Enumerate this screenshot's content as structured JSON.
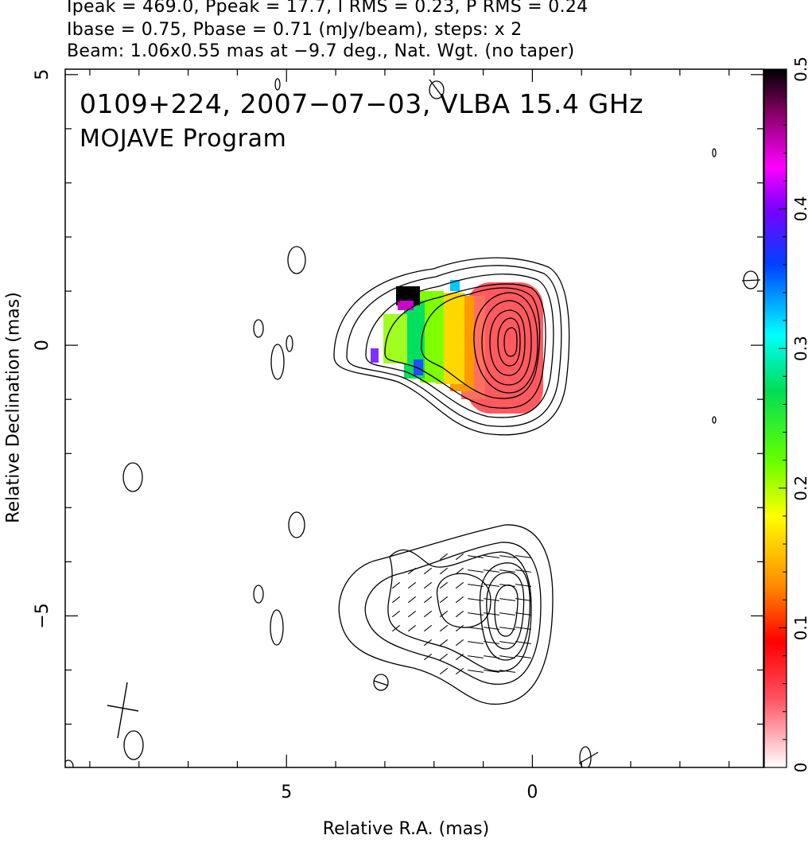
{
  "header": {
    "line1": "Ipeak = 469.0, Ppeak = 17.7, I RMS = 0.23, P RMS = 0.24",
    "line2": "Ibase = 0.75, Pbase = 0.71 (mJy/beam), steps: x 2",
    "line3": "Beam: 1.06x0.55 mas at −9.7 deg., Nat. Wgt. (no taper)"
  },
  "plot_title": {
    "line1": "0109+224, 2007−07−03, VLBA 15.4 GHz",
    "line2": "MOJAVE Program"
  },
  "chart_data": {
    "type": "contour",
    "xlabel": "Relative R.A. (mas)",
    "ylabel": "Relative Declination (mas)",
    "xlim": [
      9.5,
      -4.7
    ],
    "ylim": [
      -7.8,
      5.1
    ],
    "x_ticks": [
      {
        "value": 5,
        "label": "5"
      },
      {
        "value": 0,
        "label": "0"
      }
    ],
    "y_ticks": [
      {
        "value": 5,
        "label": "5"
      },
      {
        "value": 0,
        "label": "0"
      },
      {
        "value": -5,
        "label": "−5"
      }
    ],
    "colorbar": {
      "range": [
        0,
        0.5
      ],
      "ticks": [
        {
          "value": 0,
          "label": "0"
        },
        {
          "value": 0.1,
          "label": "0.1"
        },
        {
          "value": 0.2,
          "label": "0.2"
        },
        {
          "value": 0.3,
          "label": "0.3"
        },
        {
          "value": 0.4,
          "label": "0.4"
        },
        {
          "value": 0.5,
          "label": "0.5"
        }
      ],
      "stops": [
        {
          "v": 0.0,
          "color": "#ffffff"
        },
        {
          "v": 0.05,
          "color": "#ff5060"
        },
        {
          "v": 0.09,
          "color": "#ff0000"
        },
        {
          "v": 0.13,
          "color": "#ff8a00"
        },
        {
          "v": 0.18,
          "color": "#ffff00"
        },
        {
          "v": 0.22,
          "color": "#66ff00"
        },
        {
          "v": 0.27,
          "color": "#00dd55"
        },
        {
          "v": 0.31,
          "color": "#00ffff"
        },
        {
          "v": 0.36,
          "color": "#0040ff"
        },
        {
          "v": 0.4,
          "color": "#7a00ff"
        },
        {
          "v": 0.43,
          "color": "#ff00ff"
        },
        {
          "v": 0.47,
          "color": "#800060"
        },
        {
          "v": 0.5,
          "color": "#000000"
        }
      ]
    },
    "total_intensity_core": {
      "x": 0.0,
      "y": 0.0
    },
    "polarized_core": {
      "x": 0.1,
      "y": -5.0
    },
    "contour_levels": 8
  }
}
